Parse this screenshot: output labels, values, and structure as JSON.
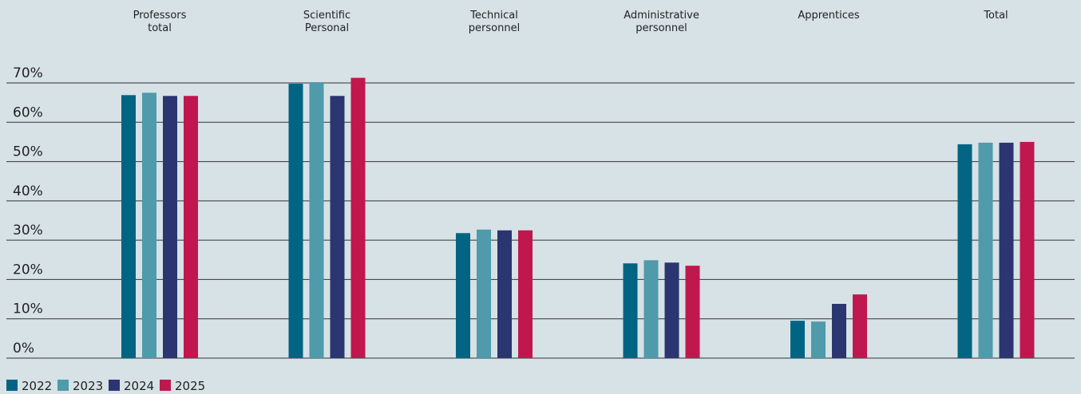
{
  "chart_data": {
    "type": "bar",
    "categories": [
      "Professors\ntotal",
      "Scientific\nPersonal",
      "Technical\npersonnel",
      "Administrative\npersonnel",
      "Apprentices",
      "Total"
    ],
    "series": [
      {
        "name": "2022",
        "color": "#006482",
        "values": [
          66.9,
          69.8,
          31.8,
          24.1,
          9.5,
          54.4
        ]
      },
      {
        "name": "2023",
        "color": "#4f9aab",
        "values": [
          67.5,
          70.2,
          32.7,
          24.9,
          9.3,
          54.8
        ]
      },
      {
        "name": "2024",
        "color": "#2b3570",
        "values": [
          66.7,
          66.7,
          32.5,
          24.3,
          13.8,
          54.8
        ]
      },
      {
        "name": "2025",
        "color": "#c0174e",
        "values": [
          66.7,
          71.3,
          32.5,
          23.5,
          16.2,
          55.0
        ]
      }
    ],
    "ylim": [
      0,
      70
    ],
    "yticks": [
      {
        "value": 0,
        "label": "0%"
      },
      {
        "value": 10,
        "label": "10%"
      },
      {
        "value": 20,
        "label": "20%"
      },
      {
        "value": 30,
        "label": "30%"
      },
      {
        "value": 40,
        "label": "40%"
      },
      {
        "value": 50,
        "label": "50%"
      },
      {
        "value": 60,
        "label": "60%"
      },
      {
        "value": 70,
        "label": "70%"
      }
    ],
    "grid": true,
    "legend": "bottom-left"
  }
}
